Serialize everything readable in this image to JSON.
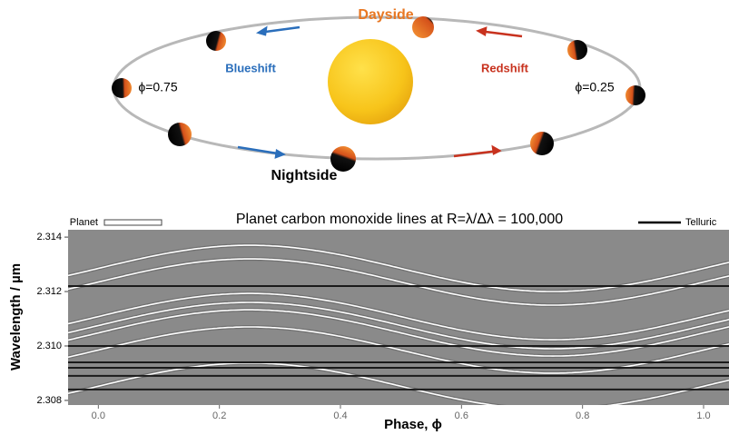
{
  "diagram": {
    "dayside": "Dayside",
    "nightside": "Nightside",
    "blueshift": "Blueshift",
    "redshift": "Redshift",
    "phase_left": "ϕ=0.75",
    "phase_right": "ϕ=0.25"
  },
  "chart_data": {
    "type": "line",
    "title": "Planet carbon monoxide lines at R=λ/Δλ = 100,000",
    "x_label": "Phase, ϕ",
    "y_label": "Wavelength / µm",
    "legend": {
      "planet": "Planet",
      "telluric": "Telluric"
    },
    "xlim": [
      -0.05,
      1.042
    ],
    "ylim": [
      2.30783,
      2.31427
    ],
    "xticks": [
      {
        "value": 0,
        "label": "0.0"
      },
      {
        "value": 0.2,
        "label": "0.2"
      },
      {
        "value": 0.4,
        "label": "0.4"
      },
      {
        "value": 0.6,
        "label": "0.6"
      },
      {
        "value": 0.8,
        "label": "0.8"
      },
      {
        "value": 1,
        "label": "1.0"
      }
    ],
    "yticks": [
      2.308,
      {
        "value": 2.31,
        "label": "2.310"
      },
      2.312,
      2.314
    ],
    "planet_lines": {
      "centers": [
        2.31285,
        2.31235,
        2.31108,
        2.31075,
        2.31048,
        2.30985,
        2.30852
      ],
      "amplitude": 0.00085,
      "color": "#ffffff"
    },
    "telluric_lines": {
      "values": [
        2.3122,
        2.31,
        2.3094,
        2.3092,
        2.3089,
        2.3084
      ],
      "color": "#1a1a1a"
    }
  }
}
